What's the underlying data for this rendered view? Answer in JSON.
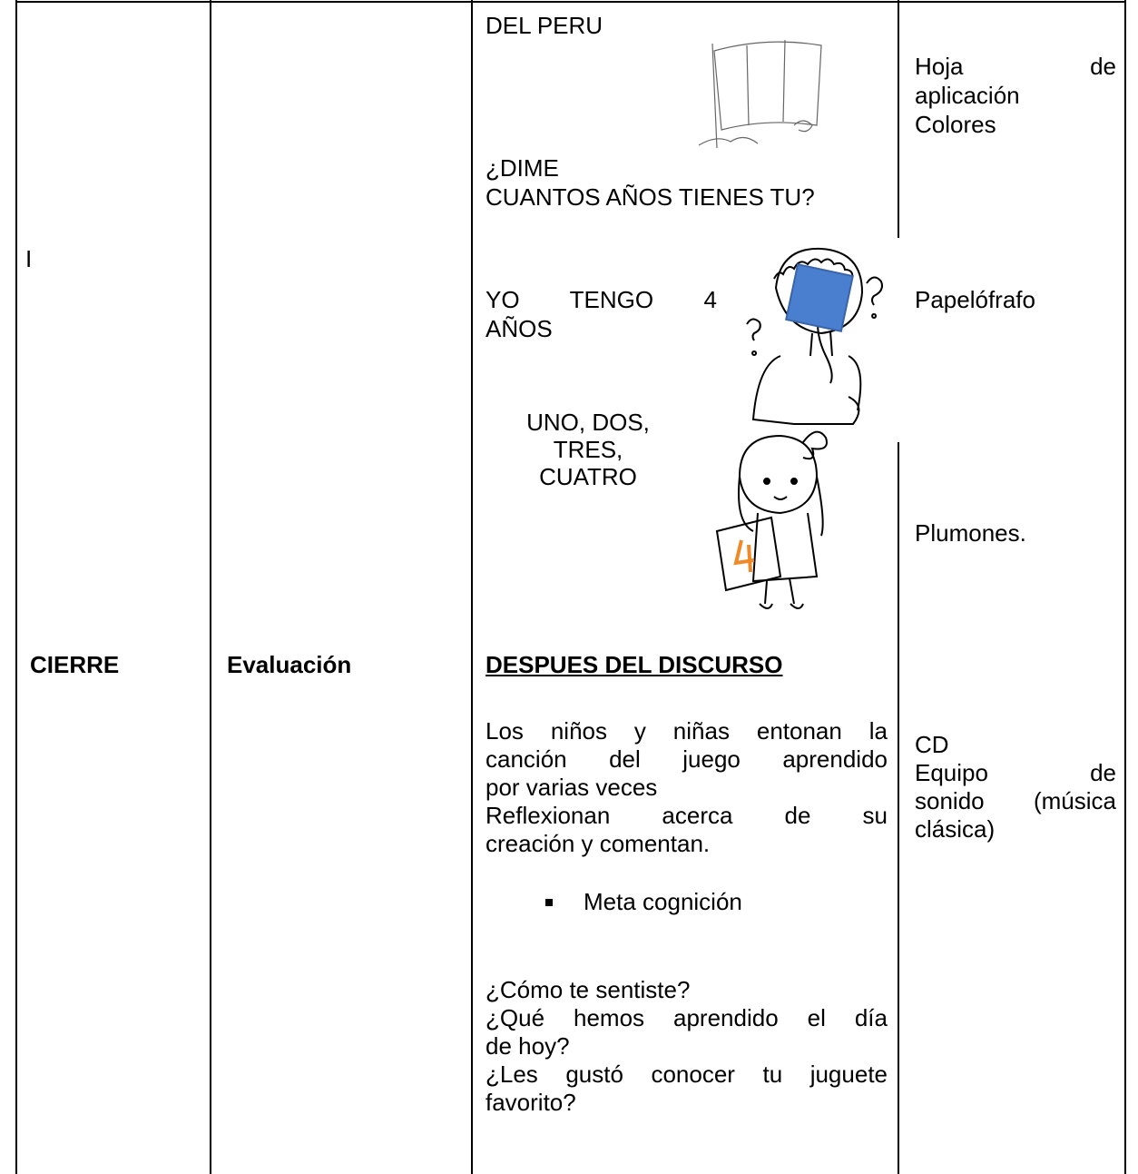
{
  "table": {
    "rows": [
      {
        "stage": "I",
        "activity": {
          "title": "DEL PERU",
          "question": [
            "¿DIME",
            "CUANTOS AÑOS TIENES TU?"
          ],
          "answer": [
            "YO TENGO 4",
            "AÑOS"
          ],
          "count": [
            "UNO, DOS,",
            "TRES,",
            "CUATRO"
          ]
        },
        "resources": [
          [
            "Hoja de",
            "aplicación",
            "Colores"
          ],
          [
            "Papelófrafo"
          ],
          [
            "Plumones."
          ]
        ]
      },
      {
        "stage": "CIERRE",
        "process": "Evaluación",
        "activity": {
          "heading": "DESPUES DEL DISCURSO",
          "paragraph": [
            "Los niños y niñas entonan la",
            "canción del juego aprendido",
            "por varias veces",
            "Reflexionan acerca de su",
            "creación y comentan."
          ],
          "bullet": "Meta cognición",
          "questions": [
            "¿Cómo te sentiste?",
            "¿Qué hemos aprendido el día",
            "de hoy?",
            "¿Les gustó conocer tu juguete",
            "favorito?"
          ]
        },
        "resources": [
          [
            "CD",
            "Equipo de",
            "sonido (música",
            "clásica)"
          ]
        ]
      }
    ]
  }
}
